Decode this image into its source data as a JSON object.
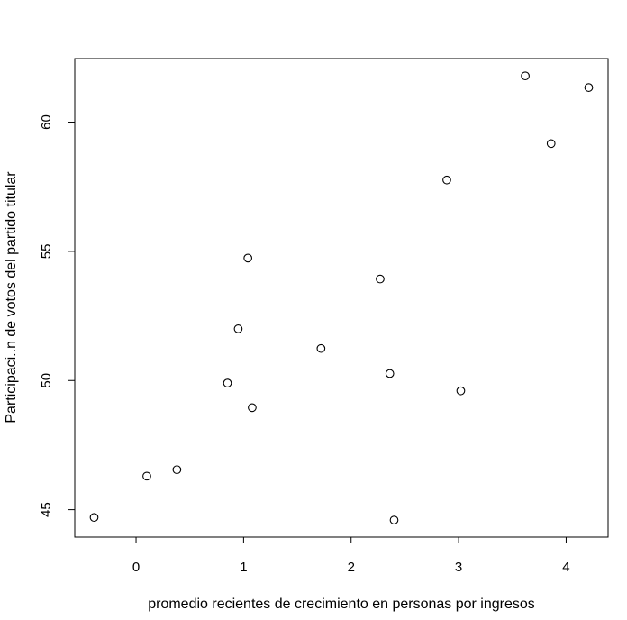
{
  "chart_data": {
    "type": "scatter",
    "title": "",
    "xlabel": "promedio recientes de crecimiento en personas por ingresos",
    "ylabel": "Participaci..n de votos del partido titular",
    "xlim": [
      -0.57,
      4.39
    ],
    "ylim": [
      43.94,
      62.46
    ],
    "x_ticks": [
      0,
      1,
      2,
      3,
      4
    ],
    "x_tick_labels": [
      "0",
      "1",
      "2",
      "3",
      "4"
    ],
    "y_ticks": [
      45,
      50,
      55,
      60
    ],
    "y_tick_labels": [
      "45",
      "50",
      "55",
      "60"
    ],
    "grid": false,
    "marker": "open-circle",
    "points": [
      {
        "x": -0.39,
        "y": 44.7
      },
      {
        "x": 0.1,
        "y": 46.3
      },
      {
        "x": 0.38,
        "y": 46.55
      },
      {
        "x": 0.85,
        "y": 49.9
      },
      {
        "x": 0.95,
        "y": 52.0
      },
      {
        "x": 1.04,
        "y": 54.74
      },
      {
        "x": 1.08,
        "y": 48.95
      },
      {
        "x": 1.72,
        "y": 51.24
      },
      {
        "x": 2.27,
        "y": 53.93
      },
      {
        "x": 2.36,
        "y": 50.27
      },
      {
        "x": 2.4,
        "y": 44.6
      },
      {
        "x": 2.89,
        "y": 57.76
      },
      {
        "x": 3.02,
        "y": 49.6
      },
      {
        "x": 3.62,
        "y": 61.79
      },
      {
        "x": 3.86,
        "y": 59.17
      },
      {
        "x": 4.21,
        "y": 61.34
      }
    ]
  }
}
